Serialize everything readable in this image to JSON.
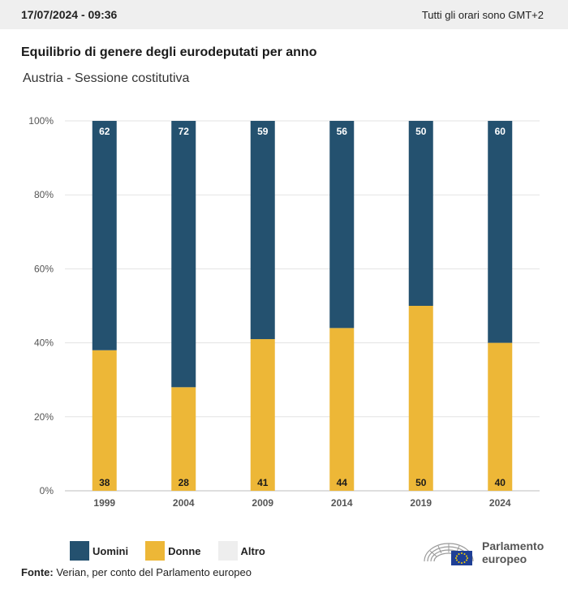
{
  "header": {
    "datetime": "17/07/2024 - 09:36",
    "timezone_note": "Tutti gli orari sono GMT+2"
  },
  "title": "Equilibrio di genere degli eurodeputati per anno",
  "subtitle": "Austria - Sessione costitutiva",
  "colors": {
    "uomini": "#24516f",
    "donne": "#edb737",
    "altro": "#eeeeee",
    "grid": "#e3e3e3",
    "axis_text": "#555555"
  },
  "chart_data": {
    "type": "bar",
    "stacked": true,
    "percent": true,
    "categories": [
      "1999",
      "2004",
      "2009",
      "2014",
      "2019",
      "2024"
    ],
    "series": [
      {
        "name": "Donne",
        "values": [
          38,
          28,
          41,
          44,
          50,
          40
        ]
      },
      {
        "name": "Uomini",
        "values": [
          62,
          72,
          59,
          56,
          50,
          60
        ]
      },
      {
        "name": "Altro",
        "values": [
          0,
          0,
          0,
          0,
          0,
          0
        ]
      }
    ],
    "ylim": [
      0,
      100
    ],
    "yticks": [
      "0%",
      "20%",
      "40%",
      "60%",
      "80%",
      "100%"
    ],
    "grid": true,
    "legend_position": "bottom-left"
  },
  "legend": {
    "uomini": "Uomini",
    "donne": "Donne",
    "altro": "Altro"
  },
  "source": {
    "label": "Fonte:",
    "text": " Verian, per conto del Parlamento europeo"
  },
  "logo": {
    "line1": "Parlamento",
    "line2": "europeo"
  }
}
